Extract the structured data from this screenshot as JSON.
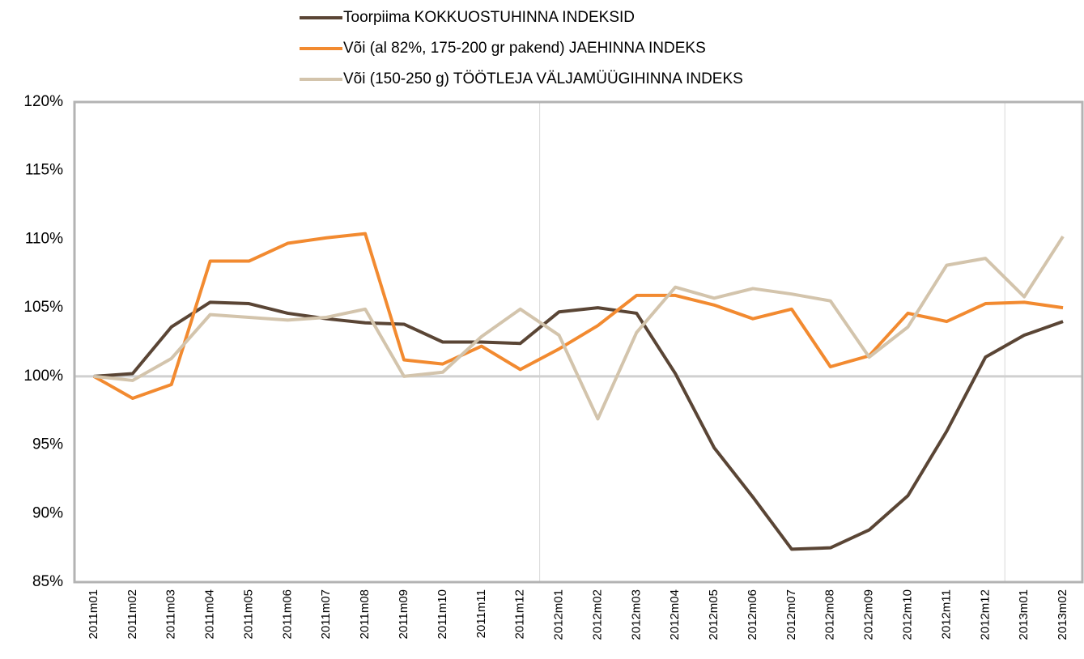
{
  "chart_data": {
    "type": "line",
    "categories": [
      "2011m01",
      "2011m02",
      "2011m03",
      "2011m04",
      "2011m05",
      "2011m06",
      "2011m07",
      "2011m08",
      "2011m09",
      "2011m10",
      "2011m11",
      "2011m12",
      "2012m01",
      "2012m02",
      "2012m03",
      "2012m04",
      "2012m05",
      "2012m06",
      "2012m07",
      "2012m08",
      "2012m09",
      "2012m10",
      "2012m11",
      "2012m12",
      "2013m01",
      "2013m02"
    ],
    "series": [
      {
        "name": "Toorpiima KOKKUOSTUHINNA INDEKSID",
        "color": "#5a4535",
        "values": [
          100,
          100.2,
          103.6,
          105.4,
          105.3,
          104.6,
          104.2,
          103.9,
          103.8,
          102.5,
          102.5,
          102.4,
          104.7,
          105.0,
          104.6,
          100.2,
          94.8,
          91.2,
          87.4,
          87.5,
          88.8,
          91.3,
          96.0,
          101.4,
          103.0,
          104.0
        ]
      },
      {
        "name": "Või (al 82%, 175-200 gr pakend) JAEHINNA INDEKS",
        "color": "#f28a30",
        "values": [
          100,
          98.4,
          99.4,
          108.4,
          108.4,
          109.7,
          110.1,
          110.4,
          101.2,
          100.9,
          102.2,
          100.5,
          102.0,
          103.7,
          105.9,
          105.9,
          105.2,
          104.2,
          104.9,
          100.7,
          101.5,
          104.6,
          104.0,
          105.3,
          105.4,
          105.0
        ]
      },
      {
        "name": "Või (150-250 g) TÖÖTLEJA VÄLJAMÜÜGIHINNA INDEKS",
        "color": "#d3c4ac",
        "values": [
          100,
          99.7,
          101.3,
          104.5,
          104.3,
          104.1,
          104.3,
          104.9,
          100.0,
          100.3,
          102.9,
          104.9,
          103.0,
          96.9,
          103.2,
          106.5,
          105.7,
          106.4,
          106.0,
          105.5,
          101.4,
          103.6,
          108.1,
          108.6,
          105.8,
          110.2
        ]
      }
    ],
    "ylim": [
      85,
      120
    ],
    "yticks": [
      {
        "value": 85,
        "label": "85%"
      },
      {
        "value": 90,
        "label": "90%"
      },
      {
        "value": 95,
        "label": "95%"
      },
      {
        "value": 100,
        "label": "100%"
      },
      {
        "value": 105,
        "label": "105%"
      },
      {
        "value": 110,
        "label": "110%"
      },
      {
        "value": 115,
        "label": "115%"
      },
      {
        "value": 120,
        "label": "120%"
      }
    ],
    "legend": "top"
  }
}
